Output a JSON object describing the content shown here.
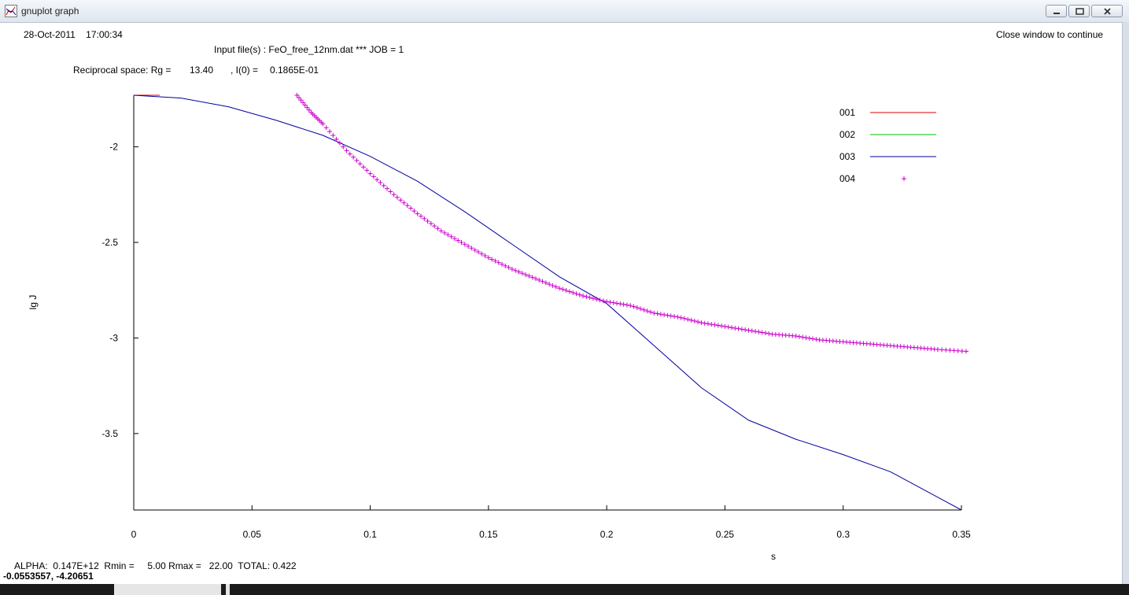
{
  "window": {
    "title": "gnuplot graph",
    "icon": "graph-icon",
    "controls": [
      "minimize-icon",
      "restore-icon",
      "close-icon"
    ]
  },
  "header": {
    "datetime": "28-Oct-2011    17:00:34",
    "close_hint": "Close window to continue",
    "input_files": "Input file(s) : FeO_free_12nm.dat *** JOB = 1",
    "reciprocal_label": "Reciprocal space: Rg =",
    "rg_value": "13.40",
    "i0_label": ", I(0) =",
    "i0_value": "0.1865E-01"
  },
  "footer": {
    "alpha_line": "ALPHA:  0.147E+12  Rmin =     5.00 Rmax =   22.00  TOTAL: 0.422",
    "cursor_coords": "-0.0553557, -4.20651"
  },
  "chart_data": {
    "type": "line",
    "xlabel": "s",
    "ylabel": "lg J",
    "xlim": [
      0,
      0.35
    ],
    "ylim": [
      -3.9,
      -1.73
    ],
    "x_ticks": [
      "0",
      "0.05",
      "0.1",
      "0.15",
      "0.2",
      "0.25",
      "0.3",
      "0.35"
    ],
    "y_ticks": [
      "-2",
      "-2.5",
      "-3",
      "-3.5"
    ],
    "grid": false,
    "legend_position": "top-right",
    "series": [
      {
        "name": "001",
        "color": "#e00000",
        "style": "line",
        "x": [
          0.0,
          0.005,
          0.011
        ],
        "y": [
          -1.73,
          -1.73,
          -1.73
        ]
      },
      {
        "name": "002",
        "color": "#00c000",
        "style": "line",
        "x": [],
        "y": []
      },
      {
        "name": "003",
        "color": "#0000a0",
        "style": "line",
        "x": [
          0.0,
          0.02,
          0.04,
          0.06,
          0.08,
          0.1,
          0.12,
          0.14,
          0.16,
          0.18,
          0.2,
          0.22,
          0.24,
          0.26,
          0.28,
          0.3,
          0.32,
          0.35
        ],
        "y": [
          -1.73,
          -1.745,
          -1.79,
          -1.86,
          -1.94,
          -2.05,
          -2.18,
          -2.34,
          -2.51,
          -2.68,
          -2.82,
          -3.04,
          -3.26,
          -3.43,
          -3.53,
          -3.61,
          -3.7,
          -3.9
        ]
      },
      {
        "name": "004",
        "color": "#cc00cc",
        "style": "points",
        "x": [
          0.069,
          0.075,
          0.08,
          0.09,
          0.1,
          0.11,
          0.12,
          0.13,
          0.14,
          0.15,
          0.16,
          0.17,
          0.18,
          0.19,
          0.2,
          0.21,
          0.22,
          0.23,
          0.24,
          0.25,
          0.26,
          0.27,
          0.28,
          0.29,
          0.3,
          0.31,
          0.32,
          0.33,
          0.34,
          0.352
        ],
        "y": [
          -1.73,
          -1.82,
          -1.88,
          -2.02,
          -2.14,
          -2.25,
          -2.35,
          -2.44,
          -2.51,
          -2.58,
          -2.64,
          -2.69,
          -2.74,
          -2.78,
          -2.81,
          -2.83,
          -2.87,
          -2.89,
          -2.92,
          -2.94,
          -2.96,
          -2.98,
          -2.99,
          -3.01,
          -3.02,
          -3.03,
          -3.04,
          -3.05,
          -3.06,
          -3.07
        ]
      }
    ]
  }
}
